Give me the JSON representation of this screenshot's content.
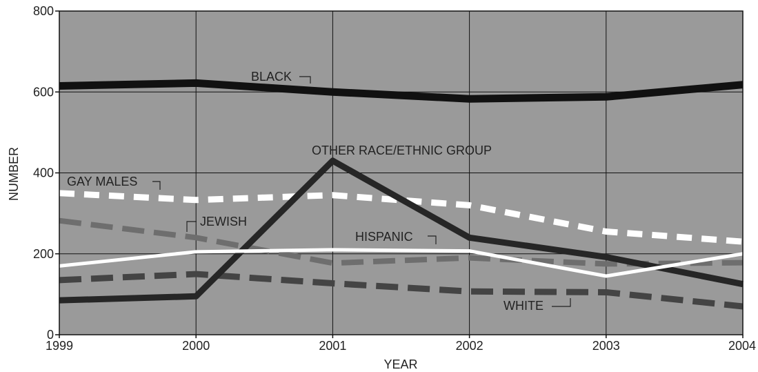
{
  "chart_data": {
    "type": "line",
    "title": "",
    "xlabel": "YEAR",
    "ylabel": "NUMBER",
    "x": [
      1999,
      2000,
      2001,
      2002,
      2003,
      2004
    ],
    "x_tick_labels": [
      "1999",
      "2000",
      "2001",
      "2002",
      "2003",
      "2004"
    ],
    "ylim": [
      0,
      800
    ],
    "y_ticks": [
      0,
      200,
      400,
      600,
      800
    ],
    "y_tick_labels": [
      "0",
      "200",
      "400",
      "600",
      "800"
    ],
    "grid": true,
    "background_color": "#9a9a9a",
    "series": [
      {
        "id": "black",
        "name": "BLACK",
        "values": [
          615,
          622,
          600,
          583,
          588,
          618
        ],
        "color": "#111111",
        "style": "solid"
      },
      {
        "id": "other",
        "name": "OTHER RACE/ETHNIC GROUP",
        "values": [
          85,
          95,
          430,
          240,
          192,
          125
        ],
        "color": "#262626",
        "style": "solid"
      },
      {
        "id": "gay",
        "name": "GAY MALES",
        "values": [
          350,
          333,
          345,
          320,
          255,
          230
        ],
        "color": "#ffffff",
        "style": "dashed"
      },
      {
        "id": "jewish",
        "name": "JEWISH",
        "values": [
          282,
          240,
          177,
          190,
          175,
          178
        ],
        "color": "#6e6e6e",
        "style": "dashed"
      },
      {
        "id": "hispanic",
        "name": "HISPANIC",
        "values": [
          170,
          205,
          210,
          207,
          145,
          200
        ],
        "color": "#ffffff",
        "style": "solid"
      },
      {
        "id": "white",
        "name": "WHITE",
        "values": [
          135,
          150,
          127,
          107,
          105,
          70
        ],
        "color": "#444444",
        "style": "dashed"
      }
    ]
  }
}
